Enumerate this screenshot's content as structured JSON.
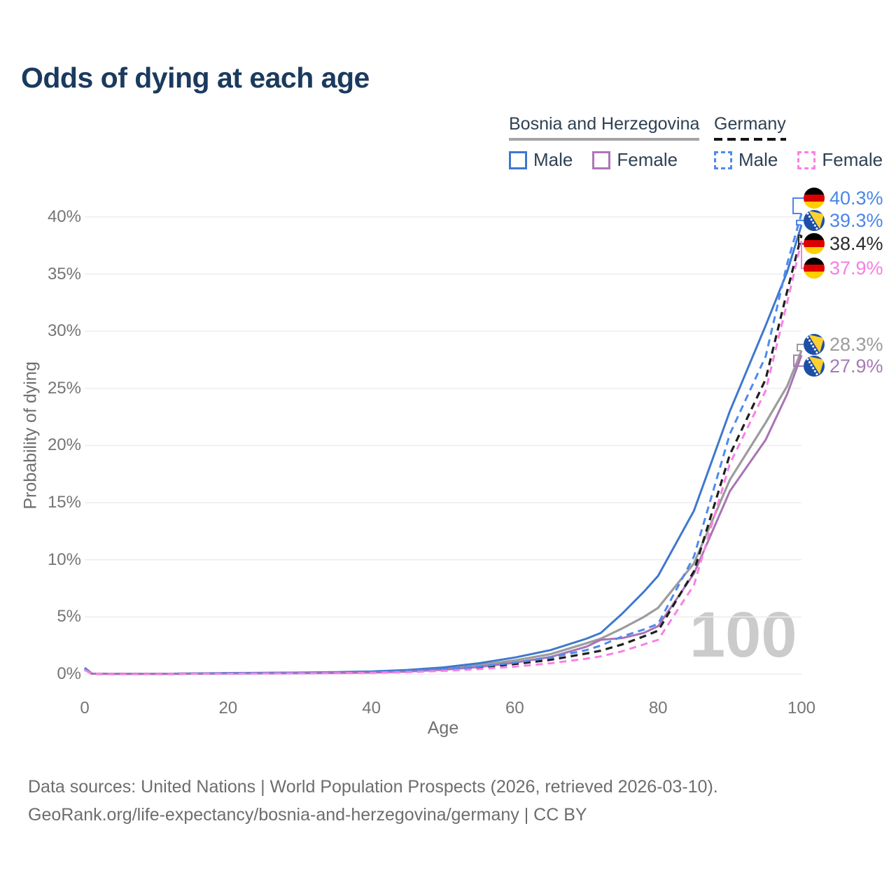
{
  "title": "Odds of dying at each age",
  "watermark": "100",
  "colors": {
    "title_text": "#1b3a5e",
    "legend_text": "#2e4154",
    "axis_text": "#757575",
    "gridline": "#ececec",
    "watermark": "#cbcbcb",
    "footer_text": "#6d6d6d"
  },
  "flags": {
    "de": {
      "black": "#000000",
      "red": "#dd0000",
      "gold": "#ffce00"
    },
    "ba": {
      "field": "#1e4fa8",
      "triangle": "#ffd12e",
      "stars": "#ffffff"
    }
  },
  "legend": {
    "groups": [
      {
        "label": "Bosnia and Herzegovina",
        "line_style": "solid",
        "line_color": "#a5a5a5",
        "items": [
          {
            "label": "Male",
            "color": "#3e78cf",
            "dash": false
          },
          {
            "label": "Female",
            "color": "#ad77b5",
            "dash": false
          }
        ]
      },
      {
        "label": "Germany",
        "line_style": "dashed",
        "line_color": "#141414",
        "items": [
          {
            "label": "Male",
            "color": "#4d8af0",
            "dash": true
          },
          {
            "label": "Female",
            "color": "#fa80e4",
            "dash": true
          }
        ]
      }
    ]
  },
  "chart_data": {
    "type": "line",
    "title": "Odds of dying at each age",
    "xlabel": "Age",
    "ylabel": "Probability of dying",
    "xlim": [
      0,
      100
    ],
    "ylim": [
      0,
      42.5
    ],
    "x_ticks": [
      0,
      20,
      40,
      60,
      80,
      100
    ],
    "y_ticks": [
      0,
      5,
      10,
      15,
      20,
      25,
      30,
      35,
      40
    ],
    "y_tick_suffix": "%",
    "grid": "horizontal",
    "legend_position": "top-right",
    "x": [
      0,
      1,
      5,
      10,
      15,
      20,
      25,
      30,
      35,
      40,
      45,
      50,
      55,
      60,
      65,
      70,
      72,
      75,
      78,
      80,
      85,
      90,
      95,
      98,
      100
    ],
    "series": [
      {
        "name": "Bosnia and Herzegovina — All",
        "key": "ba_all",
        "color": "#9c9c9c",
        "dash": false,
        "width": 3.2,
        "values": [
          0.5,
          0.04,
          0.02,
          0.02,
          0.04,
          0.07,
          0.09,
          0.11,
          0.14,
          0.19,
          0.3,
          0.48,
          0.78,
          1.2,
          1.75,
          2.7,
          3.1,
          4.0,
          5.0,
          5.8,
          9.7,
          17.0,
          22.0,
          25.2,
          28.3
        ]
      },
      {
        "name": "Bosnia and Herzegovina — Male",
        "key": "ba_male",
        "color": "#3e78cf",
        "dash": false,
        "width": 3,
        "values": [
          0.55,
          0.04,
          0.02,
          0.02,
          0.05,
          0.09,
          0.11,
          0.13,
          0.17,
          0.23,
          0.36,
          0.58,
          0.95,
          1.45,
          2.1,
          3.1,
          3.6,
          5.3,
          7.2,
          8.6,
          14.3,
          23.0,
          30.5,
          35.2,
          39.3
        ]
      },
      {
        "name": "Bosnia and Herzegovina — Female",
        "key": "ba_female",
        "color": "#a874b4",
        "dash": false,
        "width": 3,
        "values": [
          0.45,
          0.03,
          0.02,
          0.02,
          0.03,
          0.05,
          0.06,
          0.08,
          0.1,
          0.14,
          0.22,
          0.38,
          0.62,
          1.0,
          1.5,
          2.4,
          3.0,
          3.15,
          3.6,
          4.2,
          8.8,
          16.0,
          20.5,
          24.5,
          27.9
        ]
      },
      {
        "name": "Germany — All",
        "key": "de_all",
        "color": "#1f1f1f",
        "dash": true,
        "width": 3.2,
        "values": [
          0.38,
          0.03,
          0.01,
          0.01,
          0.04,
          0.06,
          0.07,
          0.09,
          0.11,
          0.15,
          0.23,
          0.37,
          0.58,
          0.88,
          1.25,
          1.8,
          2.05,
          2.6,
          3.3,
          3.8,
          9.0,
          19.2,
          25.8,
          33.5,
          38.4
        ]
      },
      {
        "name": "Germany — Male",
        "key": "de_male",
        "color": "#4d8af0",
        "dash": true,
        "width": 3,
        "values": [
          0.4,
          0.03,
          0.01,
          0.01,
          0.04,
          0.07,
          0.08,
          0.1,
          0.13,
          0.17,
          0.26,
          0.42,
          0.65,
          1.0,
          1.45,
          2.1,
          2.5,
          3.3,
          3.9,
          4.4,
          10.3,
          21.0,
          27.8,
          35.9,
          40.3
        ]
      },
      {
        "name": "Germany — Female",
        "key": "de_female",
        "color": "#fa80e4",
        "dash": true,
        "width": 3,
        "values": [
          0.35,
          0.03,
          0.01,
          0.01,
          0.03,
          0.04,
          0.05,
          0.06,
          0.08,
          0.11,
          0.17,
          0.28,
          0.44,
          0.65,
          0.95,
          1.35,
          1.55,
          2.0,
          2.6,
          3.0,
          7.8,
          18.4,
          24.8,
          32.5,
          37.9
        ]
      }
    ],
    "end_labels": [
      {
        "series": "de_male",
        "text": "40.3%",
        "value": 40.3,
        "flag": "de",
        "color": "#4a86e8",
        "label_value": 41.65
      },
      {
        "series": "ba_male",
        "text": "39.3%",
        "value": 39.3,
        "flag": "ba",
        "color": "#4a86e8",
        "label_value": 39.7
      },
      {
        "series": "de_all",
        "text": "38.4%",
        "value": 38.4,
        "flag": "de",
        "color": "#2b2b2b",
        "label_value": 37.65
      },
      {
        "series": "de_female",
        "text": "37.9%",
        "value": 37.9,
        "flag": "de",
        "color": "#f47fe3",
        "label_value": 35.5
      },
      {
        "series": "ba_all",
        "text": "28.3%",
        "value": 28.3,
        "flag": "ba",
        "color": "#9b9b9b",
        "label_value": 28.85
      },
      {
        "series": "ba_female",
        "text": "27.9%",
        "value": 27.9,
        "flag": "ba",
        "color": "#a67ab5",
        "label_value": 26.95
      }
    ]
  },
  "footer": {
    "line1": "Data sources: United Nations | World Population Prospects (2026, retrieved 2026-03-10).",
    "line2": "GeoRank.org/life-expectancy/bosnia-and-herzegovina/germany | CC BY"
  }
}
